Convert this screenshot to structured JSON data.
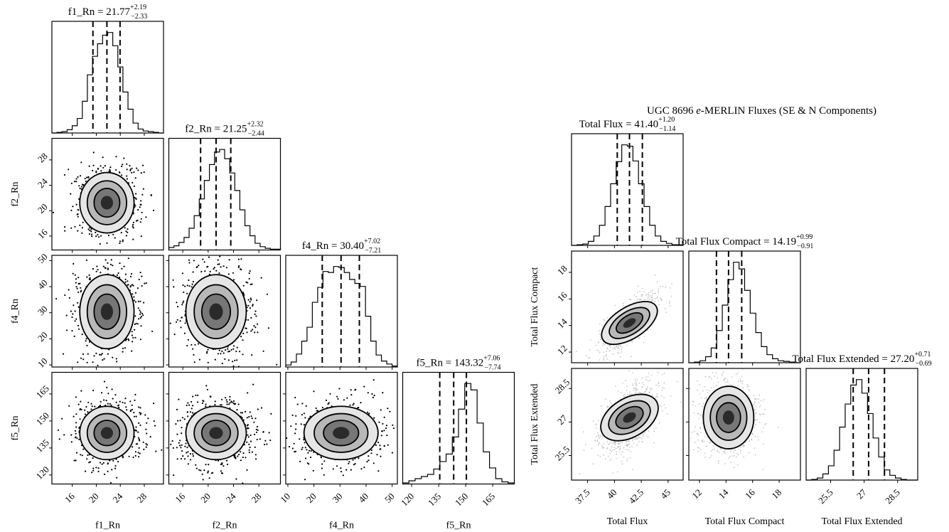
{
  "charts": [
    {
      "id": "left",
      "type": "corner",
      "params": [
        "f1_Rn",
        "f2_Rn",
        "f4_Rn",
        "f5_Rn"
      ],
      "ranges": [
        [
          12.6,
          31.2
        ],
        [
          13.8,
          31.4
        ],
        [
          9.2,
          52
        ],
        [
          115,
          177
        ]
      ],
      "ticks": [
        [
          16,
          20,
          24,
          28
        ],
        [
          16,
          20,
          24,
          28
        ],
        [
          10,
          20,
          30,
          40,
          50
        ],
        [
          120,
          135,
          150,
          165
        ]
      ],
      "diag_titles": [
        {
          "text": "f1_Rn = 21.77",
          "sup": "+2.19",
          "sub": "−2.33"
        },
        {
          "text": "f2_Rn = 21.25",
          "sup": "+2.32",
          "sub": "−2.44"
        },
        {
          "text": "f4_Rn = 30.40",
          "sup": "+7.02",
          "sub": "−7.21"
        },
        {
          "text": "f5_Rn = 143.32",
          "sup": "+7.06",
          "sub": "−7.74"
        }
      ],
      "quantiles": [
        [
          19.44,
          21.77,
          23.96
        ],
        [
          18.81,
          21.25,
          23.57
        ],
        [
          23.19,
          30.4,
          37.42
        ],
        [
          135.58,
          143.32,
          150.38
        ]
      ],
      "histograms": [
        [
          0,
          1,
          2,
          5,
          11,
          22,
          48,
          88,
          116,
          135,
          148,
          152,
          132,
          100,
          62,
          36,
          15,
          6,
          3,
          2,
          1,
          0
        ],
        [
          3,
          5,
          9,
          15,
          26,
          41,
          61,
          83,
          102,
          117,
          120,
          109,
          92,
          71,
          48,
          29,
          17,
          8,
          4,
          2,
          1,
          1
        ],
        [
          2,
          5,
          13,
          26,
          40,
          65,
          80,
          96,
          95,
          101,
          100,
          95,
          88,
          84,
          81,
          51,
          26,
          12,
          6,
          3,
          1
        ],
        [
          1,
          3,
          5,
          7,
          9,
          14,
          21,
          28,
          44,
          70,
          94,
          88,
          57,
          30,
          15,
          5,
          2,
          1
        ]
      ],
      "centers": [
        21.77,
        21.25,
        30.4,
        143.32
      ],
      "sigmas": [
        2.26,
        2.38,
        7.1,
        7.4
      ]
    },
    {
      "id": "right",
      "type": "corner",
      "suptitle": "UGC 8696",
      "suptitle_em": "e",
      "suptitle_rest": "-MERLIN Fluxes (SE & N Components)",
      "params": [
        "Total Flux",
        "Total Flux Compact",
        "Total Flux Extended"
      ],
      "ranges": [
        [
          36.0,
          46.4
        ],
        [
          11.2,
          19.6
        ],
        [
          24.4,
          29.4
        ]
      ],
      "ticks": [
        [
          37.5,
          40.0,
          42.5,
          45.0
        ],
        [
          12,
          14,
          16,
          18
        ],
        [
          25.5,
          27.0,
          28.5
        ]
      ],
      "diag_titles": [
        {
          "text": "Total Flux = 41.40",
          "sup": "+1.20",
          "sub": "−1.14"
        },
        {
          "text": "Total Flux Compact = 14.19",
          "sup": "+0.99",
          "sub": "−0.91"
        },
        {
          "text": "Total Flux Extended = 27.20",
          "sup": "+0.71",
          "sub": "−0.69"
        }
      ],
      "quantiles": [
        [
          40.26,
          41.4,
          42.6
        ],
        [
          13.28,
          14.19,
          15.18
        ],
        [
          26.51,
          27.2,
          27.91
        ]
      ],
      "histograms": [
        [
          0,
          1,
          2,
          6,
          14,
          30,
          58,
          92,
          125,
          150,
          148,
          126,
          92,
          58,
          30,
          14,
          6,
          3,
          1,
          1
        ],
        [
          0,
          1,
          3,
          9,
          22,
          48,
          86,
          124,
          150,
          140,
          108,
          74,
          45,
          24,
          12,
          6,
          3,
          2,
          1,
          0
        ],
        [
          0,
          1,
          3,
          9,
          21,
          44,
          78,
          112,
          140,
          148,
          128,
          98,
          62,
          34,
          15,
          7,
          3,
          1,
          0,
          0
        ]
      ],
      "centers": [
        41.4,
        14.19,
        27.2
      ],
      "sigmas": [
        1.17,
        0.95,
        0.7
      ]
    }
  ]
}
